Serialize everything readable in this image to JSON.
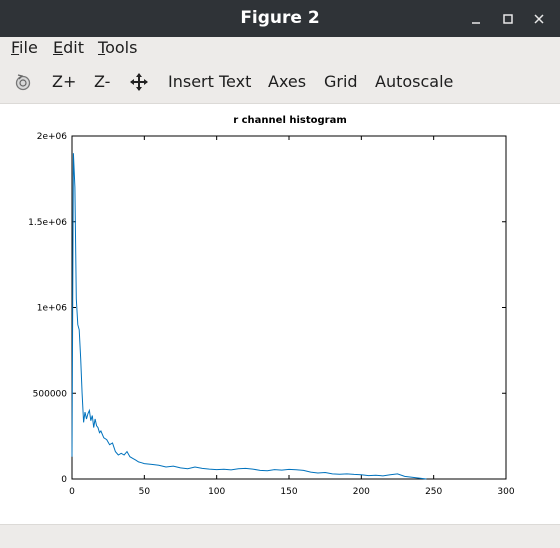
{
  "window": {
    "title": "Figure 2",
    "minimize_symbol": "✕",
    "buttons": [
      "minimize-icon",
      "maximize-icon",
      "close-icon"
    ]
  },
  "menubar": {
    "items": [
      {
        "label": "File",
        "mnemonic": "F",
        "rest": "ile"
      },
      {
        "label": "Edit",
        "mnemonic": "E",
        "rest": "dit"
      },
      {
        "label": "Tools",
        "mnemonic": "T",
        "rest": "ools"
      }
    ]
  },
  "toolbar": {
    "rotate_icon": "rotate-icon",
    "zoom_in_label": "Z+",
    "zoom_out_label": "Z-",
    "pan_icon": "pan-icon",
    "insert_text_label": "Insert Text",
    "axes_label": "Axes",
    "grid_label": "Grid",
    "autoscale_label": "Autoscale"
  },
  "colors": {
    "titlebar": "#2f3337",
    "chrome": "#edebe9",
    "line": "#0072bd"
  },
  "chart_data": {
    "type": "line",
    "title": "r channel histogram",
    "xlabel": "",
    "ylabel": "",
    "xlim": [
      0,
      300
    ],
    "ylim": [
      0,
      2000000
    ],
    "xticks": [
      0,
      50,
      100,
      150,
      200,
      250,
      300
    ],
    "yticks": [
      0,
      500000,
      1000000,
      1500000,
      2000000
    ],
    "xtick_labels": [
      "0",
      "50",
      "100",
      "150",
      "200",
      "250",
      "300"
    ],
    "ytick_labels": [
      "0",
      "500000",
      "1e+06",
      "1.5e+06",
      "2e+06"
    ],
    "grid": false,
    "series": [
      {
        "name": "",
        "x": [
          0,
          1,
          2,
          3,
          4,
          5,
          6,
          7,
          8,
          9,
          10,
          11,
          12,
          13,
          14,
          15,
          16,
          17,
          18,
          19,
          20,
          22,
          24,
          26,
          28,
          30,
          32,
          34,
          36,
          38,
          40,
          42,
          44,
          46,
          48,
          50,
          55,
          60,
          65,
          70,
          75,
          80,
          85,
          90,
          95,
          100,
          105,
          110,
          115,
          120,
          125,
          130,
          135,
          140,
          145,
          150,
          155,
          160,
          165,
          170,
          175,
          180,
          185,
          190,
          195,
          200,
          205,
          210,
          215,
          220,
          225,
          230,
          235,
          240,
          245
        ],
        "y": [
          130000,
          1900000,
          1700000,
          1050000,
          900000,
          870000,
          700000,
          500000,
          330000,
          390000,
          350000,
          380000,
          400000,
          340000,
          370000,
          300000,
          350000,
          310000,
          300000,
          270000,
          280000,
          240000,
          230000,
          200000,
          210000,
          160000,
          140000,
          150000,
          140000,
          160000,
          130000,
          120000,
          110000,
          100000,
          95000,
          90000,
          85000,
          80000,
          70000,
          75000,
          65000,
          60000,
          70000,
          62000,
          58000,
          55000,
          57000,
          53000,
          60000,
          62000,
          58000,
          50000,
          48000,
          55000,
          52000,
          56000,
          54000,
          50000,
          40000,
          35000,
          38000,
          30000,
          28000,
          30000,
          27000,
          25000,
          20000,
          22000,
          18000,
          25000,
          30000,
          15000,
          10000,
          5000,
          0
        ]
      }
    ]
  }
}
